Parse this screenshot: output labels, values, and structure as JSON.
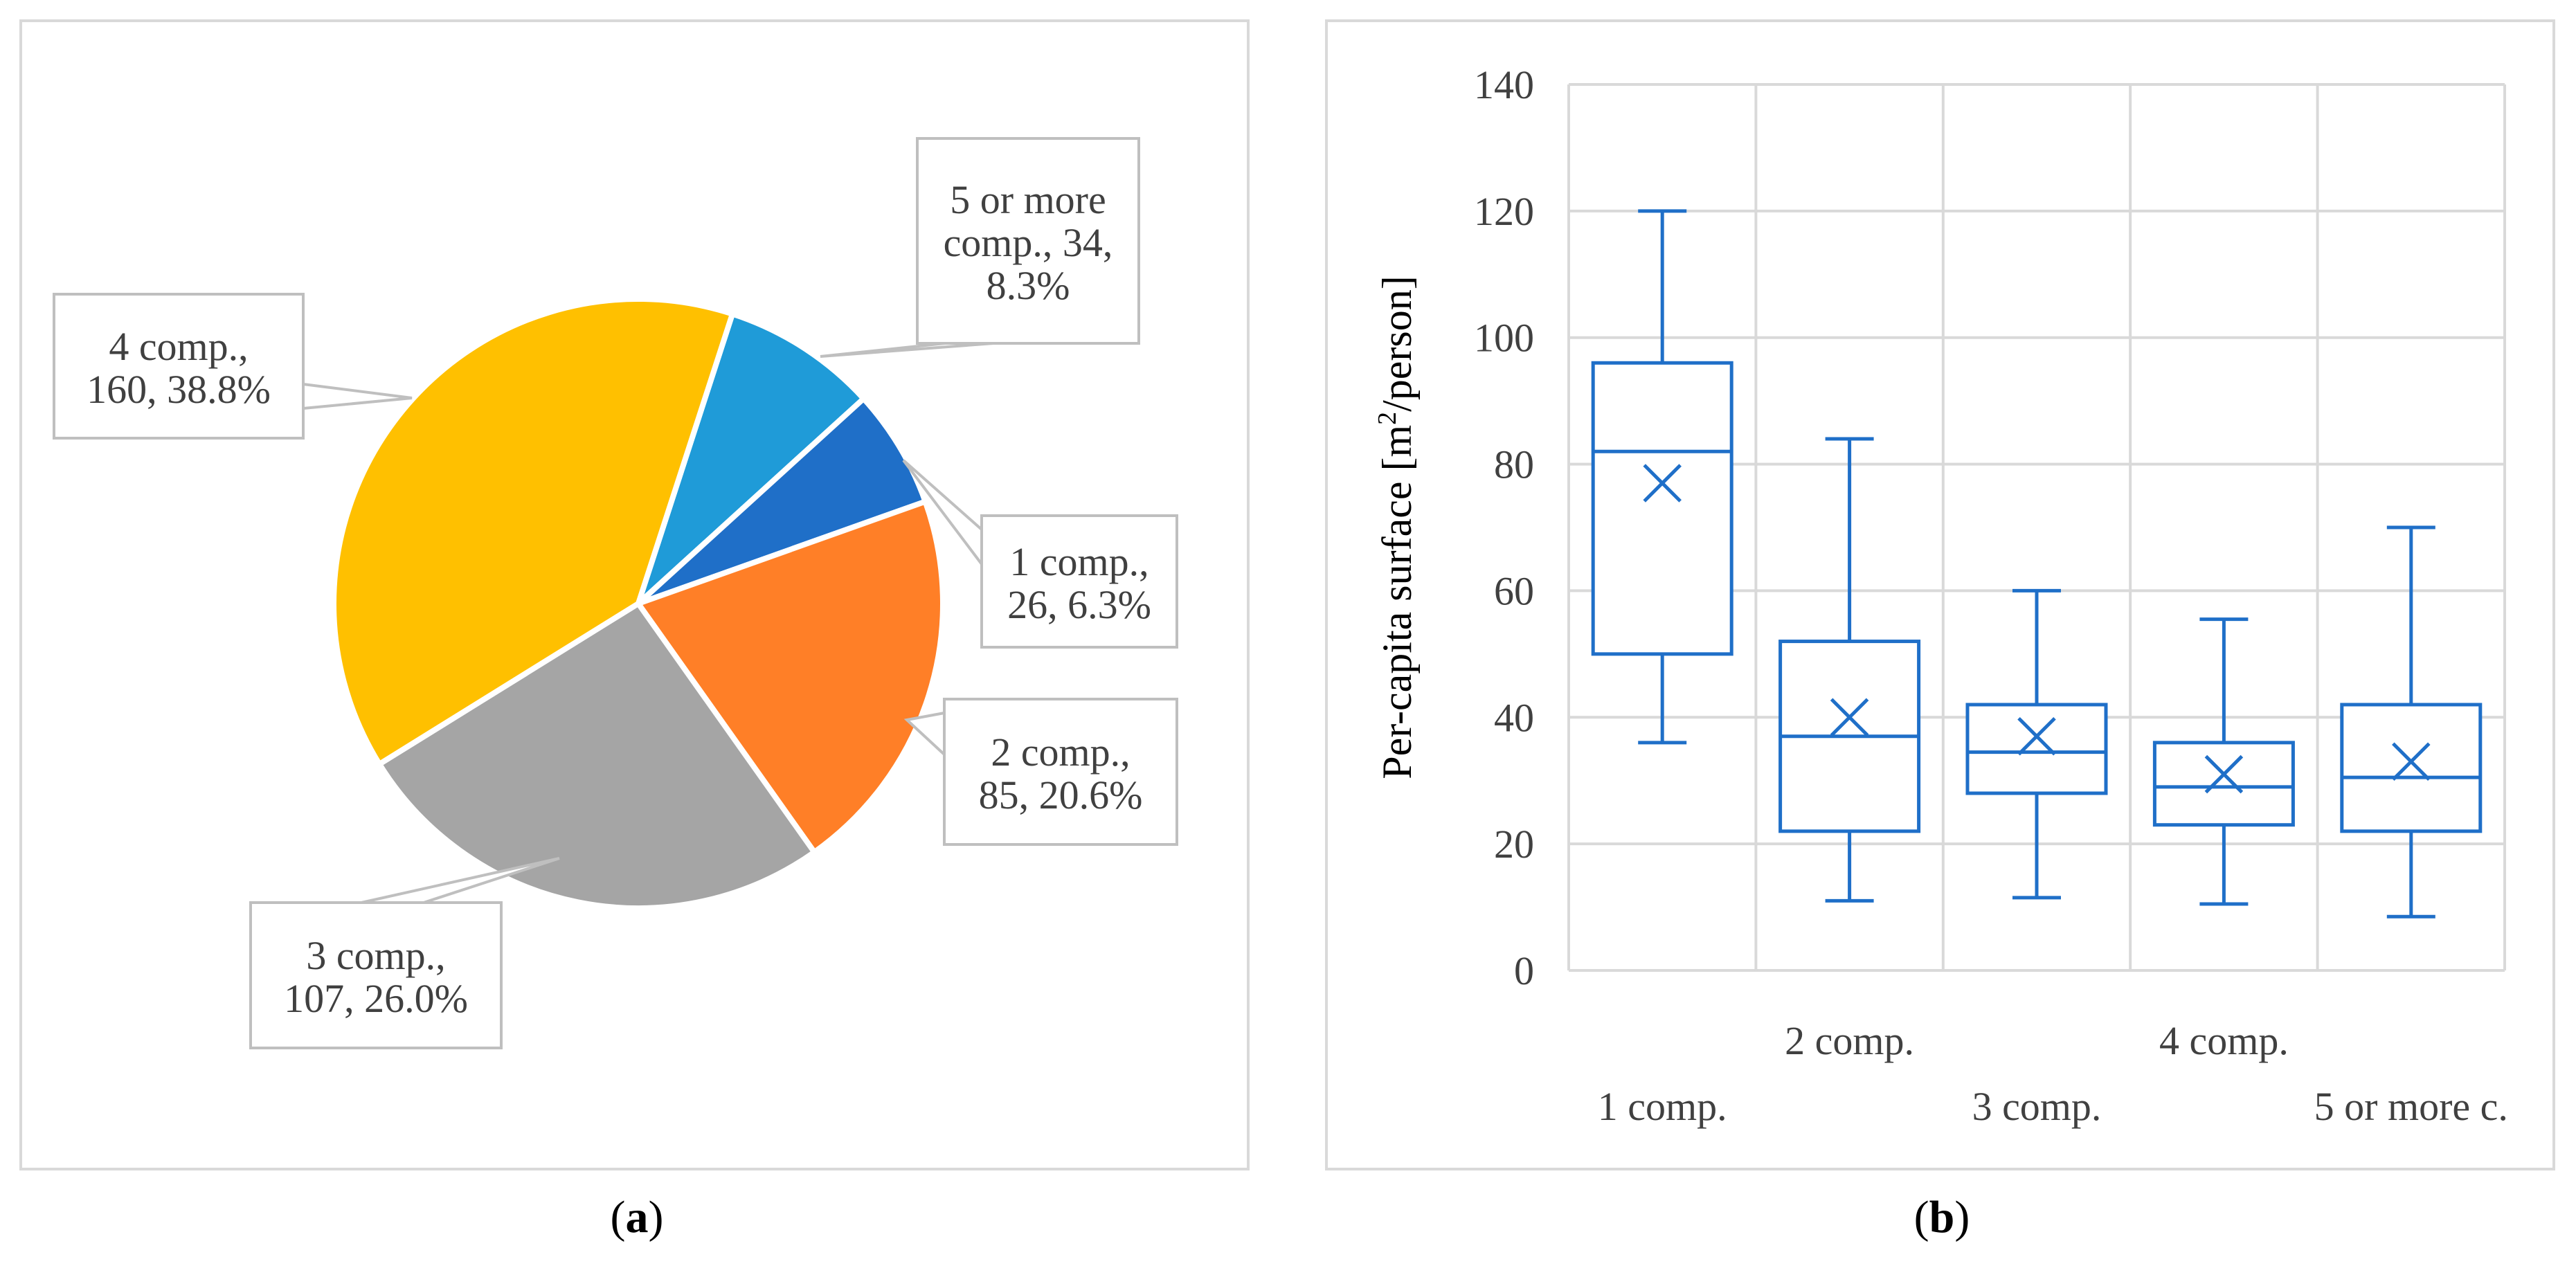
{
  "panels": {
    "a_label_open": "(",
    "a_label_letter": "a",
    "a_label_close": ")",
    "b_label_open": "(",
    "b_label_letter": "b",
    "b_label_close": ")"
  },
  "chart_data": [
    {
      "type": "pie",
      "title": "",
      "slices": [
        {
          "name": "1 comp.",
          "value": 26,
          "percent": "6.3%",
          "color": "#1F6FC8",
          "label_lines": [
            "1 comp.,",
            "26, 6.3%"
          ]
        },
        {
          "name": "2 comp.",
          "value": 85,
          "percent": "20.6%",
          "color": "#FF7F27",
          "label_lines": [
            "2 comp.,",
            "85, 20.6%"
          ]
        },
        {
          "name": "3 comp.",
          "value": 107,
          "percent": "26.0%",
          "color": "#A5A5A5",
          "label_lines": [
            "3 comp.,",
            "107, 26.0%"
          ]
        },
        {
          "name": "4 comp.",
          "value": 160,
          "percent": "38.8%",
          "color": "#FFC000",
          "label_lines": [
            "4 comp.,",
            "160, 38.8%"
          ]
        },
        {
          "name": "5 or more comp.",
          "value": 34,
          "percent": "8.3%",
          "color": "#1F9BD8",
          "label_lines": [
            "5 or more",
            "comp., 34,",
            "8.3%"
          ]
        }
      ]
    },
    {
      "type": "boxplot",
      "title": "",
      "xlabel": "",
      "ylabel_prefix": "Per-capita surface [m",
      "ylabel_sup": "2",
      "ylabel_suffix": "/person]",
      "ylim": [
        0,
        140
      ],
      "yticks": [
        0,
        20,
        40,
        60,
        80,
        100,
        120,
        140
      ],
      "grid": true,
      "color": "#1F6FC8",
      "categories": [
        "1 comp.",
        "2 comp.",
        "3 comp.",
        "4 comp.",
        "5 or more c."
      ],
      "boxes": [
        {
          "min": 36,
          "q1": 50,
          "median": 82,
          "q3": 96,
          "max": 120,
          "mean": 77
        },
        {
          "min": 11,
          "q1": 22,
          "median": 37,
          "q3": 52,
          "max": 84,
          "mean": 40
        },
        {
          "min": 11.5,
          "q1": 28,
          "median": 34.5,
          "q3": 42,
          "max": 60,
          "mean": 37
        },
        {
          "min": 10.5,
          "q1": 23,
          "median": 29,
          "q3": 36,
          "max": 55.5,
          "mean": 31
        },
        {
          "min": 8.5,
          "q1": 22,
          "median": 30.5,
          "q3": 42,
          "max": 70,
          "mean": 33
        }
      ]
    }
  ]
}
